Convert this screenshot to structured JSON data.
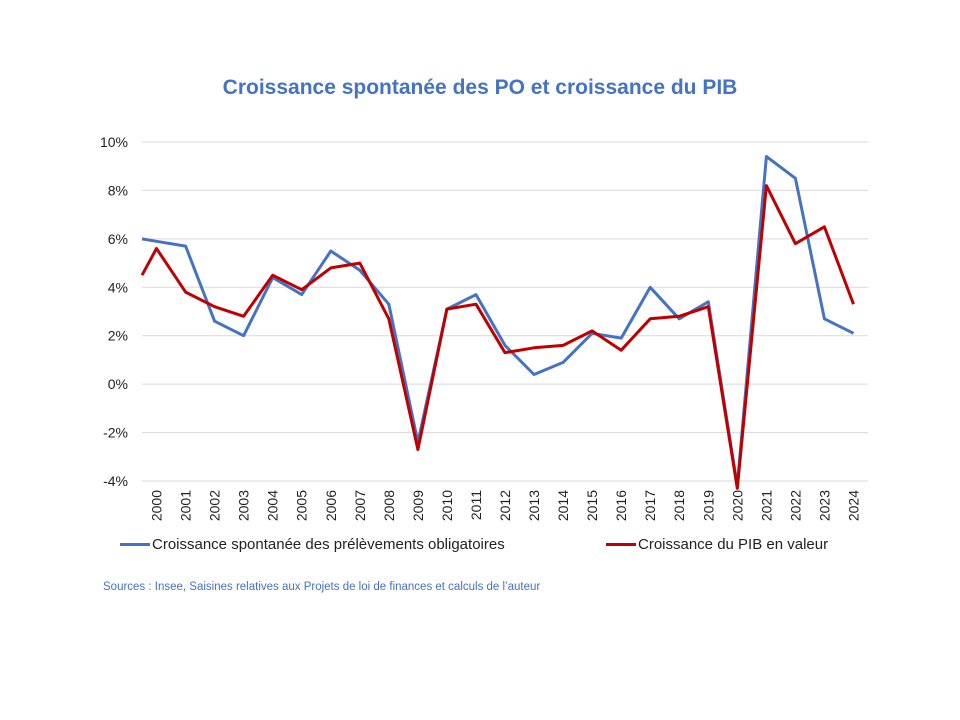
{
  "chart_data": {
    "type": "line",
    "title": "Croissance spontanée des PO et croissance du PIB",
    "xlabel": "",
    "ylabel": "",
    "categories": [
      "2000",
      "2001",
      "2002",
      "2003",
      "2004",
      "2005",
      "2006",
      "2007",
      "2008",
      "2009",
      "2010",
      "2011",
      "2012",
      "2013",
      "2014",
      "2015",
      "2016",
      "2017",
      "2018",
      "2019",
      "2020",
      "2021",
      "2022",
      "2023",
      "2024"
    ],
    "ylim": [
      -0.04,
      0.1
    ],
    "ytick_values": [
      -0.04,
      -0.02,
      0.0,
      0.02,
      0.04,
      0.06,
      0.08,
      0.1
    ],
    "ytick_labels": [
      "-4%",
      "-2%",
      "0%",
      "2%",
      "4%",
      "6%",
      "8%",
      "10%"
    ],
    "grid": "horizontal",
    "legend_position": "bottom",
    "series": [
      {
        "name": "Croissance spontanée des prélèvements obligatoires",
        "color": "#4472C4",
        "start": 0.06,
        "values": [
          0.059,
          0.057,
          0.026,
          0.02,
          0.044,
          0.037,
          0.055,
          0.047,
          0.033,
          -0.024,
          0.031,
          0.037,
          0.016,
          0.004,
          0.009,
          0.021,
          0.019,
          0.04,
          0.027,
          0.034,
          -0.042,
          0.094,
          0.085,
          0.027,
          0.021
        ]
      },
      {
        "name": "Croissance du PIB en valeur",
        "color": "#C00000",
        "start": 0.045,
        "values": [
          0.056,
          0.038,
          0.032,
          0.028,
          0.045,
          0.039,
          0.048,
          0.05,
          0.027,
          -0.027,
          0.031,
          0.033,
          0.013,
          0.015,
          0.016,
          0.022,
          0.014,
          0.027,
          0.028,
          0.032,
          -0.043,
          0.082,
          0.058,
          0.065,
          0.033
        ]
      }
    ]
  },
  "source": "Sources : Insee, Saisines relatives aux Projets de loi de finances et calculs de l’auteur"
}
